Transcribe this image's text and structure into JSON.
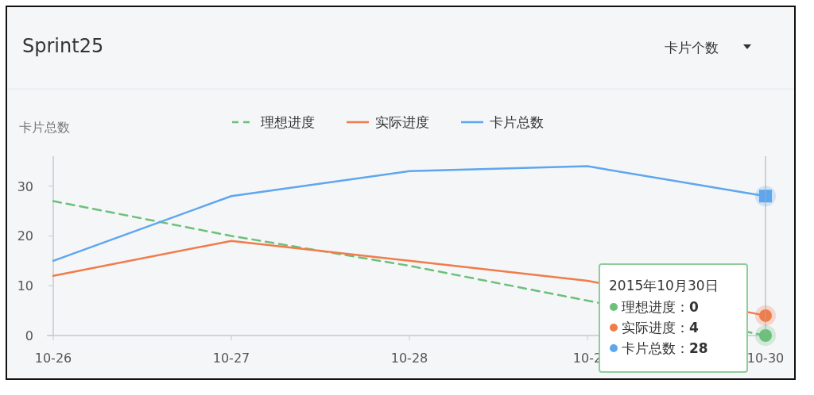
{
  "chart_data": {
    "type": "line",
    "title": "Sprint25",
    "ylabel": "卡片总数",
    "categories": [
      "10-26",
      "10-27",
      "10-28",
      "10-2",
      "10-30"
    ],
    "series": [
      {
        "name": "理想进度",
        "color": "#6cc07a",
        "line_style": "dashed",
        "values": [
          27,
          20,
          14,
          7,
          0
        ]
      },
      {
        "name": "实际进度",
        "color": "#f07c4a",
        "line_style": "solid",
        "values": [
          12,
          19,
          15,
          11,
          4
        ]
      },
      {
        "name": "卡片总数",
        "color": "#5ea6ee",
        "line_style": "solid",
        "values": [
          15,
          28,
          33,
          34,
          28
        ]
      }
    ],
    "ylim": [
      0,
      36
    ],
    "yticks": [
      0,
      10,
      20,
      30
    ],
    "grid": false,
    "legend": "top",
    "marker": "none",
    "annotations": [
      "卡片个数",
      "2015年10月30日",
      "理想进度：**0**",
      "实际进度：**4**",
      "卡片总数：**28**"
    ]
  }
}
